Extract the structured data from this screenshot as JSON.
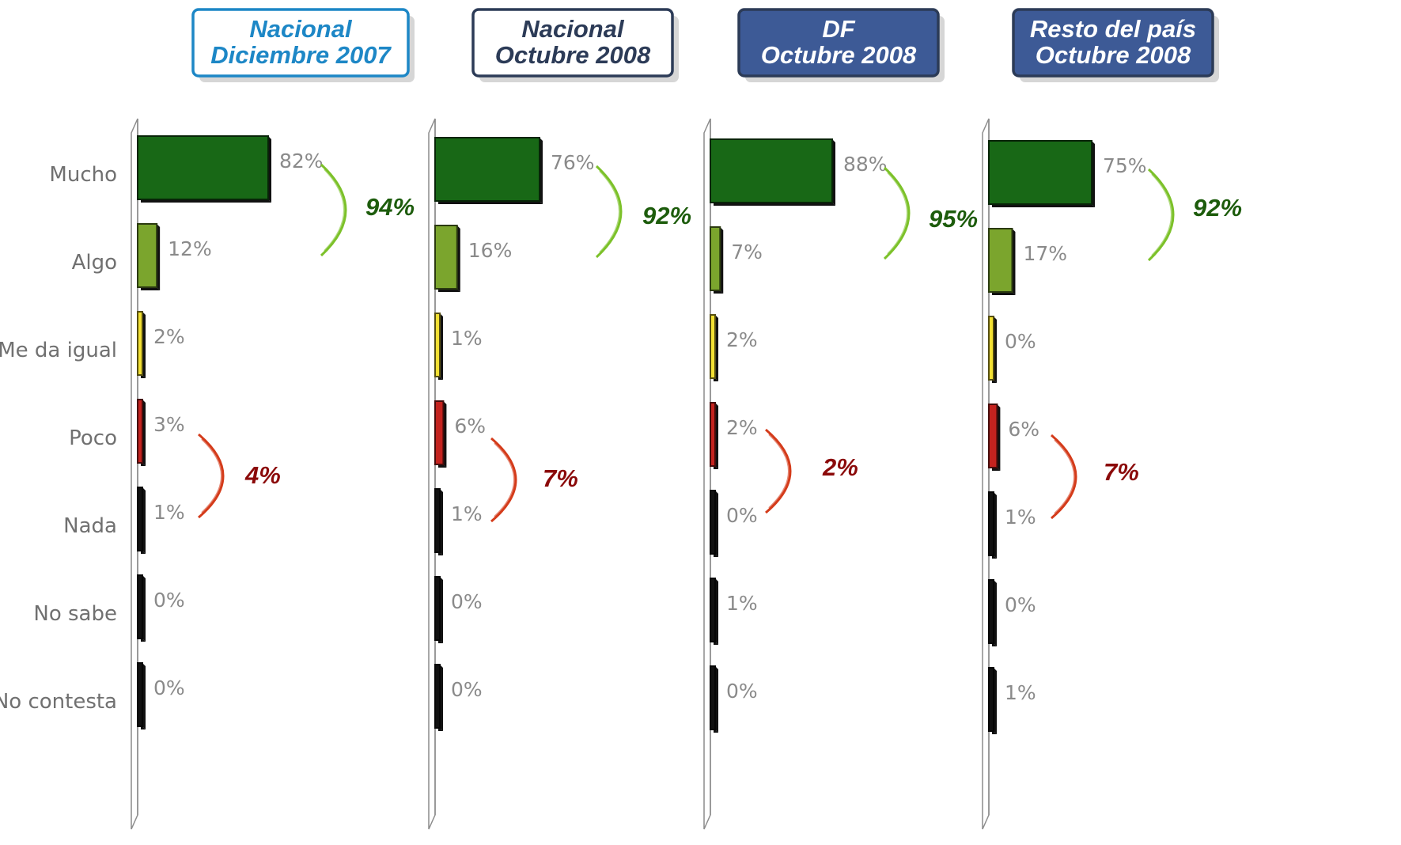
{
  "chart_data": {
    "type": "bar",
    "categories": [
      "Mucho",
      "Algo",
      "Me da igual",
      "Poco",
      "Nada",
      "No sabe",
      "No contesta"
    ],
    "category_colors": [
      "#186816",
      "#7ba52d",
      "#f2e033",
      "#c4231f",
      "#111111",
      "#111111",
      "#111111"
    ],
    "bracket_colors": {
      "top": "#7cc129",
      "bottom": "#d43b1a"
    },
    "panels": [
      {
        "title_line1": "Nacional",
        "title_line2": "Diciembre 2007",
        "header_style": "outline-blue",
        "values": [
          82,
          12,
          2,
          3,
          1,
          0,
          0
        ],
        "labels": [
          "82%",
          "12%",
          "2%",
          "3%",
          "1%",
          "0%",
          "0%"
        ],
        "top_group": "94%",
        "bottom_group": "4%"
      },
      {
        "title_line1": "Nacional",
        "title_line2": "Octubre 2008",
        "header_style": "outline-dark",
        "values": [
          76,
          16,
          1,
          6,
          1,
          0,
          0
        ],
        "labels": [
          "76%",
          "16%",
          "1%",
          "6%",
          "1%",
          "0%",
          "0%"
        ],
        "top_group": "92%",
        "bottom_group": "7%"
      },
      {
        "title_line1": "DF",
        "title_line2": "Octubre 2008",
        "header_style": "filled",
        "values": [
          88,
          7,
          2,
          2,
          0,
          1,
          0
        ],
        "labels": [
          "88%",
          "7%",
          "2%",
          "2%",
          "0%",
          "1%",
          "0%"
        ],
        "top_group": "95%",
        "bottom_group": "2%"
      },
      {
        "title_line1": "Resto del país",
        "title_line2": "Octubre 2008",
        "header_style": "filled",
        "values": [
          75,
          17,
          0,
          6,
          1,
          0,
          1
        ],
        "labels": [
          "75%",
          "17%",
          "0%",
          "6%",
          "1%",
          "0%",
          "1%"
        ],
        "top_group": "92%",
        "bottom_group": "7%"
      }
    ]
  }
}
